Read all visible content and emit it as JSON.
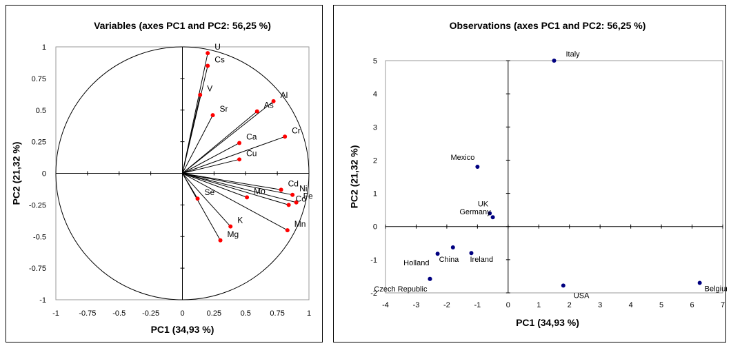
{
  "chart_data": [
    {
      "type": "scatter",
      "subtype": "pca-correlation-circle",
      "title": "Variables (axes PC1 and PC2: 56,25 %)",
      "xlabel": "PC1 (34,93 %)",
      "ylabel": "PC2 (21,32 %)",
      "xlim": [
        -1,
        1
      ],
      "ylim": [
        -1,
        1
      ],
      "xticks": [
        "-1",
        "-0.75",
        "-0.5",
        "-0.25",
        "0",
        "0.25",
        "0.5",
        "0.75",
        "1"
      ],
      "yticks": [
        "-1",
        "-0.75",
        "-0.5",
        "-0.25",
        "0",
        "0.25",
        "0.5",
        "0.75",
        "1"
      ],
      "grid": false,
      "unit_circle": true,
      "vectors_from_origin": true,
      "marker_color": "#ff0000",
      "points": [
        {
          "label": "U",
          "x": 0.2,
          "y": 0.95
        },
        {
          "label": "Cs",
          "x": 0.2,
          "y": 0.85
        },
        {
          "label": "V",
          "x": 0.14,
          "y": 0.62
        },
        {
          "label": "Sr",
          "x": 0.24,
          "y": 0.46
        },
        {
          "label": "Al",
          "x": 0.72,
          "y": 0.57
        },
        {
          "label": "As",
          "x": 0.59,
          "y": 0.49
        },
        {
          "label": "Cr",
          "x": 0.81,
          "y": 0.29
        },
        {
          "label": "Ca",
          "x": 0.45,
          "y": 0.24
        },
        {
          "label": "Cu",
          "x": 0.45,
          "y": 0.11
        },
        {
          "label": "Ni",
          "x": 0.87,
          "y": -0.17
        },
        {
          "label": "Mo",
          "x": 0.51,
          "y": -0.19
        },
        {
          "label": "Fe",
          "x": 0.9,
          "y": -0.23
        },
        {
          "label": "Co",
          "x": 0.84,
          "y": -0.25
        },
        {
          "label": "Cd",
          "x": 0.78,
          "y": -0.13
        },
        {
          "label": "Se",
          "x": 0.12,
          "y": -0.2
        },
        {
          "label": "K",
          "x": 0.38,
          "y": -0.42
        },
        {
          "label": "Mn",
          "x": 0.83,
          "y": -0.45
        },
        {
          "label": "Mg",
          "x": 0.3,
          "y": -0.53
        }
      ]
    },
    {
      "type": "scatter",
      "subtype": "pca-observations",
      "title": "Observations (axes PC1 and PC2: 56,25 %)",
      "xlabel": "PC1 (34,93 %)",
      "ylabel": "PC2 (21,32 %)",
      "xlim": [
        -4,
        7
      ],
      "ylim": [
        -2,
        5
      ],
      "xticks": [
        "-4",
        "-3",
        "-2",
        "-1",
        "0",
        "1",
        "2",
        "3",
        "4",
        "5",
        "6",
        "7"
      ],
      "yticks": [
        "-2",
        "-1",
        "0",
        "1",
        "2",
        "3",
        "4",
        "5"
      ],
      "grid": false,
      "marker_color": "#000080",
      "points": [
        {
          "label": "Italy",
          "x": 1.5,
          "y": 5.0
        },
        {
          "label": "Mexico",
          "x": -1.0,
          "y": 1.8
        },
        {
          "label": "UK",
          "x": -0.6,
          "y": 0.4
        },
        {
          "label": "Germany",
          "x": -0.5,
          "y": 0.28
        },
        {
          "label": "China",
          "x": -2.3,
          "y": -0.82
        },
        {
          "label": "",
          "x": -1.8,
          "y": -0.63
        },
        {
          "label": "Ireland",
          "x": -1.2,
          "y": -0.8
        },
        {
          "label": "Holland",
          "x": -2.55,
          "y": -1.58
        },
        {
          "label": "Czech Republic",
          "x": -2.55,
          "y": -1.58
        },
        {
          "label": "USA",
          "x": 1.8,
          "y": -1.78
        },
        {
          "label": "Belgium",
          "x": 6.25,
          "y": -1.7
        }
      ]
    }
  ]
}
